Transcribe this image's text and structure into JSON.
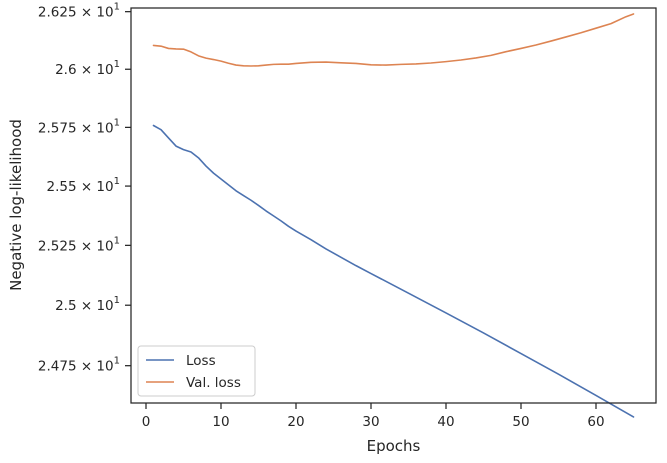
{
  "chart_data": {
    "type": "line",
    "title": "",
    "xlabel": "Epochs",
    "ylabel": "Negative log-likelihood",
    "xlim": [
      -2,
      68
    ],
    "ylim": [
      24.597,
      26.266
    ],
    "y_scale": "log",
    "grid": false,
    "legend_position": "lower-left",
    "x_ticks": [
      0,
      10,
      20,
      30,
      40,
      50,
      60
    ],
    "x_tick_labels": [
      "0",
      "10",
      "20",
      "30",
      "40",
      "50",
      "60"
    ],
    "y_ticks": [
      24.75,
      25.0,
      25.25,
      25.5,
      25.75,
      26.0,
      26.25
    ],
    "y_tick_labels": [
      {
        "mantissa": "2.475",
        "exp": "1"
      },
      {
        "mantissa": "2.5",
        "exp": "1"
      },
      {
        "mantissa": "2.525",
        "exp": "1"
      },
      {
        "mantissa": "2.55",
        "exp": "1"
      },
      {
        "mantissa": "2.575",
        "exp": "1"
      },
      {
        "mantissa": "2.6",
        "exp": "1"
      },
      {
        "mantissa": "2.625",
        "exp": "1"
      }
    ],
    "series": [
      {
        "name": "Loss",
        "color": "#4c72b0",
        "points": [
          [
            1,
            25.758
          ],
          [
            2,
            25.74
          ],
          [
            3,
            25.705
          ],
          [
            4,
            25.67
          ],
          [
            5,
            25.655
          ],
          [
            6,
            25.645
          ],
          [
            7,
            25.62
          ],
          [
            8,
            25.585
          ],
          [
            9,
            25.555
          ],
          [
            10,
            25.53
          ],
          [
            11,
            25.505
          ],
          [
            12,
            25.48
          ],
          [
            13,
            25.46
          ],
          [
            14,
            25.44
          ],
          [
            15,
            25.418
          ],
          [
            16,
            25.395
          ],
          [
            17,
            25.374
          ],
          [
            18,
            25.353
          ],
          [
            19,
            25.33
          ],
          [
            20,
            25.31
          ],
          [
            22,
            25.274
          ],
          [
            24,
            25.235
          ],
          [
            26,
            25.2
          ],
          [
            28,
            25.165
          ],
          [
            30,
            25.132
          ],
          [
            35,
            25.05
          ],
          [
            40,
            24.968
          ],
          [
            45,
            24.885
          ],
          [
            50,
            24.8
          ],
          [
            55,
            24.715
          ],
          [
            60,
            24.628
          ],
          [
            65,
            24.54
          ]
        ]
      },
      {
        "name": "Val. loss",
        "color": "#dd8452",
        "points": [
          [
            1,
            26.103
          ],
          [
            2,
            26.1
          ],
          [
            3,
            26.09
          ],
          [
            4,
            26.088
          ],
          [
            5,
            26.087
          ],
          [
            6,
            26.075
          ],
          [
            7,
            26.058
          ],
          [
            8,
            26.048
          ],
          [
            9,
            26.042
          ],
          [
            10,
            26.035
          ],
          [
            11,
            26.026
          ],
          [
            12,
            26.018
          ],
          [
            13,
            26.015
          ],
          [
            14,
            26.014
          ],
          [
            15,
            26.015
          ],
          [
            16,
            26.018
          ],
          [
            17,
            26.021
          ],
          [
            18,
            26.022
          ],
          [
            19,
            26.022
          ],
          [
            20,
            26.025
          ],
          [
            22,
            26.03
          ],
          [
            24,
            26.031
          ],
          [
            26,
            26.028
          ],
          [
            28,
            26.025
          ],
          [
            30,
            26.019
          ],
          [
            32,
            26.018
          ],
          [
            34,
            26.021
          ],
          [
            36,
            26.023
          ],
          [
            38,
            26.027
          ],
          [
            40,
            26.033
          ],
          [
            42,
            26.04
          ],
          [
            44,
            26.049
          ],
          [
            46,
            26.06
          ],
          [
            48,
            26.076
          ],
          [
            50,
            26.09
          ],
          [
            52,
            26.105
          ],
          [
            54,
            26.122
          ],
          [
            56,
            26.14
          ],
          [
            58,
            26.158
          ],
          [
            60,
            26.178
          ],
          [
            62,
            26.198
          ],
          [
            64,
            26.228
          ],
          [
            65,
            26.24
          ]
        ]
      }
    ]
  }
}
